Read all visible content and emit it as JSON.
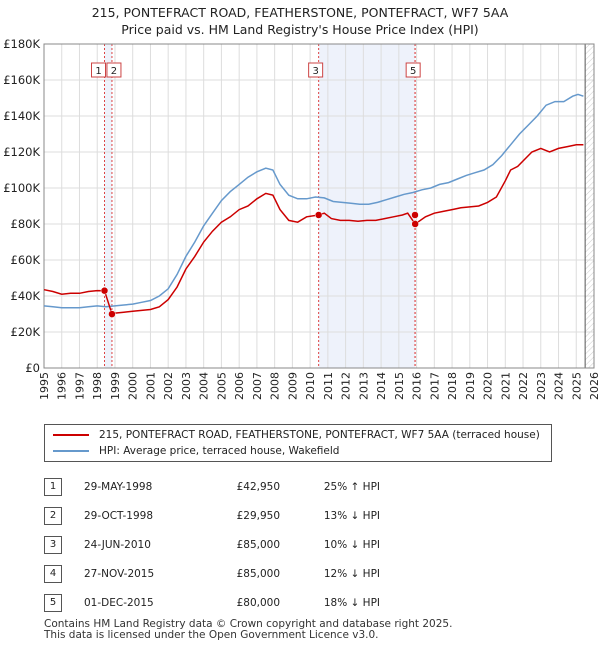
{
  "title_line1": "215, PONTEFRACT ROAD, FEATHERSTONE, PONTEFRACT, WF7 5AA",
  "title_line2": "Price paid vs. HM Land Registry's House Price Index (HPI)",
  "colors": {
    "property_line": "#cc0000",
    "hpi_line": "#6699cc",
    "shade": "#eef2fb",
    "marker_vline": "#dd4444",
    "grid": "#dddddd"
  },
  "chart_data": {
    "type": "line",
    "title": "215, PONTEFRACT ROAD, FEATHERSTONE, PONTEFRACT, WF7 5AA - Price paid vs. HM Land Registry's House Price Index (HPI)",
    "xlabel": "",
    "ylabel": "",
    "xlim": [
      1995,
      2026
    ],
    "ylim": [
      0,
      180000
    ],
    "y_ticks": [
      0,
      20000,
      40000,
      60000,
      80000,
      100000,
      120000,
      140000,
      160000,
      180000
    ],
    "y_tick_labels": [
      "£0",
      "£20K",
      "£40K",
      "£60K",
      "£80K",
      "£100K",
      "£120K",
      "£140K",
      "£160K",
      "£180K"
    ],
    "x_ticks": [
      1995,
      1996,
      1997,
      1998,
      1999,
      2000,
      2001,
      2002,
      2003,
      2004,
      2005,
      2006,
      2007,
      2008,
      2009,
      2010,
      2011,
      2012,
      2013,
      2014,
      2015,
      2016,
      2017,
      2018,
      2019,
      2020,
      2021,
      2022,
      2023,
      2024,
      2025,
      2026
    ],
    "x_tick_labels": [
      "1995",
      "1996",
      "1997",
      "1998",
      "1999",
      "2000",
      "2001",
      "2002",
      "2003",
      "2004",
      "2005",
      "2006",
      "2007",
      "2008",
      "2009",
      "2010",
      "2011",
      "2012",
      "2013",
      "2014",
      "2015",
      "2016",
      "2017",
      "2018",
      "2019",
      "2020",
      "2021",
      "2022",
      "2023",
      "2024",
      "2025",
      "2026"
    ],
    "grid": true,
    "shaded_ranges": [
      [
        1998.41,
        1998.83
      ],
      [
        2010.48,
        2015.92
      ]
    ],
    "forecast_start": 2025.5,
    "series": [
      {
        "name": "215, PONTEFRACT ROAD, FEATHERSTONE, PONTEFRACT, WF7 5AA (terraced house)",
        "x": [
          1995,
          1995.5,
          1996,
          1996.5,
          1997,
          1997.5,
          1998,
          1998.41,
          1998.83,
          1999,
          1999.5,
          2000,
          2000.5,
          2001,
          2001.5,
          2002,
          2002.5,
          2003,
          2003.5,
          2004,
          2004.5,
          2005,
          2005.5,
          2006,
          2006.5,
          2007,
          2007.5,
          2007.9,
          2008.3,
          2008.8,
          2009.3,
          2009.8,
          2010.48,
          2010.8,
          2011.2,
          2011.7,
          2012.2,
          2012.7,
          2013.2,
          2013.7,
          2014.2,
          2014.7,
          2015.2,
          2015.5,
          2015.92,
          2016.5,
          2017,
          2017.5,
          2018,
          2018.5,
          2019,
          2019.5,
          2020,
          2020.5,
          2021,
          2021.3,
          2021.7,
          2022,
          2022.5,
          2023,
          2023.5,
          2024,
          2024.5,
          2025,
          2025.4
        ],
        "y": [
          43500,
          42500,
          41000,
          41500,
          41500,
          42500,
          43000,
          42950,
          29950,
          30500,
          31000,
          31500,
          32000,
          32500,
          34000,
          38000,
          45000,
          55000,
          62000,
          70000,
          76000,
          81000,
          84000,
          88000,
          90000,
          94000,
          97000,
          96000,
          88000,
          82000,
          81000,
          84000,
          85000,
          86000,
          83000,
          82000,
          82000,
          81500,
          82000,
          82000,
          83000,
          84000,
          85000,
          86000,
          80000,
          84000,
          86000,
          87000,
          88000,
          89000,
          89500,
          90000,
          92000,
          95000,
          104000,
          110000,
          112000,
          115000,
          120000,
          122000,
          120000,
          122000,
          123000,
          124000,
          124000
        ]
      },
      {
        "name": "HPI: Average price, terraced house, Wakefield",
        "x": [
          1995,
          1995.5,
          1996,
          1996.5,
          1997,
          1997.5,
          1998,
          1998.5,
          1999,
          1999.5,
          2000,
          2000.5,
          2001,
          2001.5,
          2002,
          2002.5,
          2003,
          2003.5,
          2004,
          2004.5,
          2005,
          2005.5,
          2006,
          2006.5,
          2007,
          2007.5,
          2007.9,
          2008.3,
          2008.8,
          2009.3,
          2009.8,
          2010.3,
          2010.8,
          2011.3,
          2011.8,
          2012.3,
          2012.8,
          2013.3,
          2013.8,
          2014.3,
          2014.8,
          2015.3,
          2015.8,
          2016.3,
          2016.8,
          2017.3,
          2017.8,
          2018.3,
          2018.8,
          2019.3,
          2019.8,
          2020.3,
          2020.8,
          2021.3,
          2021.8,
          2022.3,
          2022.8,
          2023.3,
          2023.8,
          2024.3,
          2024.8,
          2025.1,
          2025.4
        ],
        "y": [
          34500,
          34000,
          33500,
          33500,
          33500,
          34000,
          34500,
          34000,
          34500,
          35000,
          35500,
          36500,
          37500,
          40000,
          44000,
          52000,
          62000,
          70000,
          79000,
          86000,
          93000,
          98000,
          102000,
          106000,
          109000,
          111000,
          110000,
          102000,
          96000,
          94000,
          94000,
          95000,
          94500,
          92500,
          92000,
          91500,
          91000,
          91000,
          92000,
          93500,
          95000,
          96500,
          97500,
          99000,
          100000,
          102000,
          103000,
          105000,
          107000,
          108500,
          110000,
          113000,
          118000,
          124000,
          130000,
          135000,
          140000,
          146000,
          148000,
          148000,
          151000,
          152000,
          151000
        ]
      }
    ],
    "markers": [
      {
        "label": "1",
        "x": 1998.41,
        "y": 42950
      },
      {
        "label": "2",
        "x": 1998.83,
        "y": 29950
      },
      {
        "label": "3",
        "x": 2010.48,
        "y": 85000
      },
      {
        "label": "4",
        "x": 2015.91,
        "y": 85000
      },
      {
        "label": "5",
        "x": 2015.92,
        "y": 80000
      }
    ]
  },
  "legend": {
    "property_label": "215, PONTEFRACT ROAD, FEATHERSTONE, PONTEFRACT, WF7 5AA (terraced house)",
    "hpi_label": "HPI: Average price, terraced house, Wakefield"
  },
  "sales": [
    {
      "num": "1",
      "date": "29-MAY-1998",
      "price": "£42,950",
      "hpi": "25% ↑ HPI"
    },
    {
      "num": "2",
      "date": "29-OCT-1998",
      "price": "£29,950",
      "hpi": "13% ↓ HPI"
    },
    {
      "num": "3",
      "date": "24-JUN-2010",
      "price": "£85,000",
      "hpi": "10% ↓ HPI"
    },
    {
      "num": "4",
      "date": "27-NOV-2015",
      "price": "£85,000",
      "hpi": "12% ↓ HPI"
    },
    {
      "num": "5",
      "date": "01-DEC-2015",
      "price": "£80,000",
      "hpi": "18% ↓ HPI"
    }
  ],
  "footer": {
    "line1": "Contains HM Land Registry data © Crown copyright and database right 2025.",
    "line2": "This data is licensed under the Open Government Licence v3.0."
  }
}
